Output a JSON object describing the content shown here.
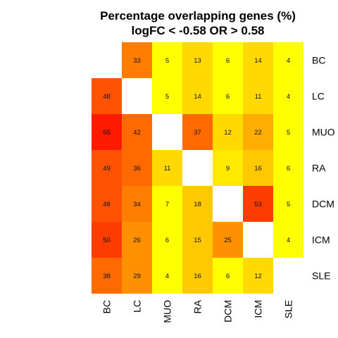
{
  "chart_data": {
    "type": "heatmap",
    "title": "Percentage overlapping genes (%)",
    "subtitle": "logFC < -0.58 OR > 0.58",
    "rows": [
      "BC",
      "LC",
      "MUO",
      "RA",
      "DCM",
      "ICM",
      "SLE"
    ],
    "columns": [
      "BC",
      "LC",
      "MUO",
      "RA",
      "DCM",
      "ICM",
      "SLE"
    ],
    "values": [
      [
        null,
        33,
        5,
        13,
        6,
        14,
        4
      ],
      [
        48,
        null,
        5,
        14,
        6,
        11,
        4
      ],
      [
        65,
        42,
        null,
        37,
        12,
        22,
        5
      ],
      [
        49,
        36,
        11,
        null,
        9,
        16,
        6
      ],
      [
        48,
        34,
        7,
        18,
        null,
        53,
        5
      ],
      [
        50,
        26,
        6,
        15,
        25,
        null,
        4
      ],
      [
        38,
        29,
        4,
        16,
        6,
        12,
        null
      ]
    ],
    "colors": {
      "scale": [
        "#ff0000",
        "#ff6000",
        "#ff9e00",
        "#ffd000",
        "#ffff00"
      ],
      "missing": "#ffffff"
    }
  }
}
